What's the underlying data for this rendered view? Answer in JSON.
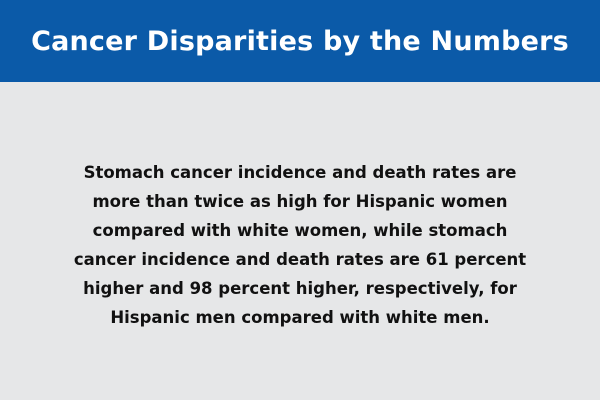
{
  "header": {
    "title": "Cancer Disparities by the Numbers"
  },
  "main": {
    "statement": "Stomach cancer incidence and death rates are more than twice as high for Hispanic women compared with white women, while stomach cancer incidence and death rates are 61 percent higher and 98 percent higher, respectively, for Hispanic men compared with white men."
  },
  "colors": {
    "header_background": "#0b5aa8",
    "body_background": "#e6e7e8",
    "title_text": "#ffffff",
    "body_text": "#111111"
  }
}
